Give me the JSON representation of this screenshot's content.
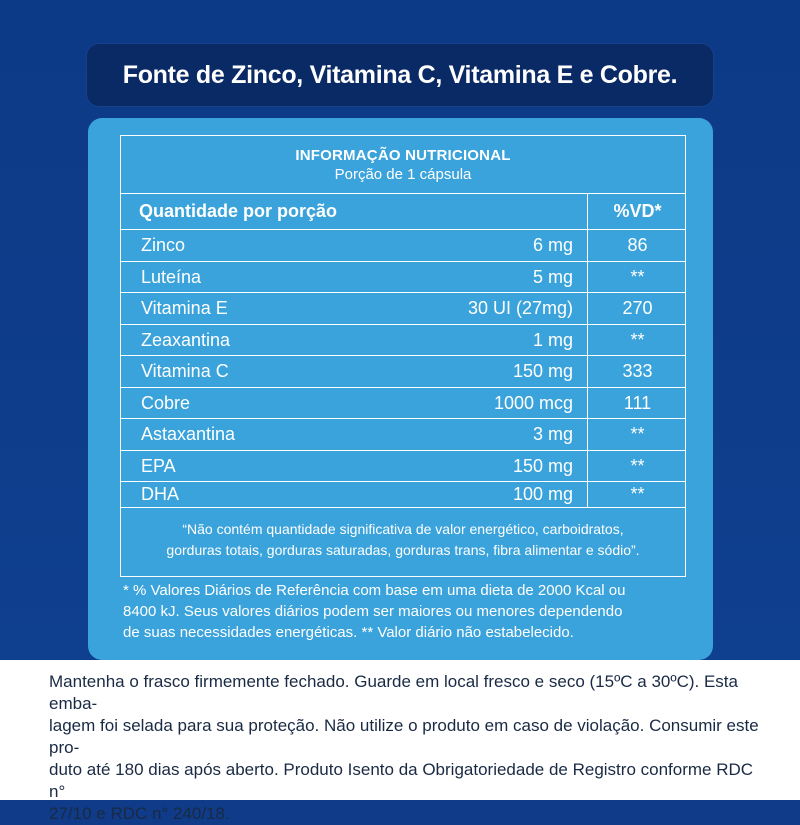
{
  "title": "Fonte de Zinco, Vitamina C, Vitamina E e Cobre.",
  "table": {
    "heading": "INFORMAÇÃO NUTRICIONAL",
    "serving": "Porção de 1 cápsula",
    "col_label": "Quantidade por porção",
    "col_vd": "%VD*",
    "rows": [
      {
        "name": "Zinco",
        "qty": "6 mg",
        "vd": "86"
      },
      {
        "name": "Luteína",
        "qty": "5 mg",
        "vd": "**"
      },
      {
        "name": "Vitamina E",
        "qty": "30 UI (27mg)",
        "vd": "270"
      },
      {
        "name": "Zeaxantina",
        "qty": "1 mg",
        "vd": "**"
      },
      {
        "name": "Vitamina C",
        "qty": "150 mg",
        "vd": "333"
      },
      {
        "name": "Cobre",
        "qty": "1000 mcg",
        "vd": "111"
      },
      {
        "name": "Astaxantina",
        "qty": "3 mg",
        "vd": "**"
      },
      {
        "name": "EPA",
        "qty": "150 mg",
        "vd": "**"
      },
      {
        "name": "DHA",
        "qty": "100 mg",
        "vd": "**"
      }
    ],
    "note_line1": "“Não contém quantidade significativa de valor energético, carboidratos,",
    "note_line2": "gorduras totais, gorduras saturadas, gorduras trans, fibra alimentar e sódio”."
  },
  "footnote": {
    "line1": "* % Valores Diários de Referência com base em uma dieta de 2000 Kcal ou",
    "line2": "8400 kJ. Seus valores diários podem ser maiores ou menores dependendo",
    "line3": "de suas necessidades energéticas. ** Valor diário não estabelecido."
  },
  "storage": {
    "line1": "Mantenha o frasco firmemente fechado. Guarde em local fresco e seco (15ºC a 30ºC). Esta emba-",
    "line2": "lagem foi selada para sua proteção. Não utilize o produto em caso de violação. Consumir este pro-",
    "line3": "duto até 180 dias após aberto. Produto Isento da Obrigatoriedade de Registro conforme RDC n°",
    "line4": "27/10 e RDC n° 240/18."
  }
}
